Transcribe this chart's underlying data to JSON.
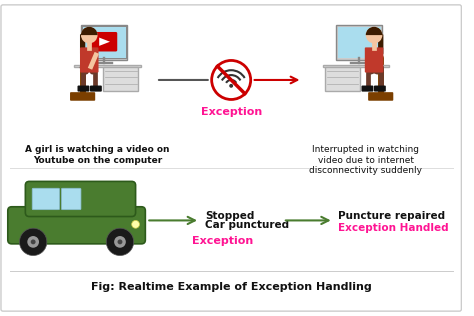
{
  "bg_color": "#ffffff",
  "border_color": "#cccccc",
  "title": "Fig: Realtime Example of Exception Handling",
  "title_color": "#111111",
  "exception_color": "#ff1493",
  "arrow_green": "#4a7c2f",
  "arrow_red": "#cc0000",
  "text_color": "#111111",
  "top_left_caption": "A girl is watching a video on\nYoutube on the computer",
  "top_right_caption": "Interrupted in watching\nvideo due to internet\ndisconnectivity suddenly",
  "exception_label_top": "Exception",
  "bottom_left_label1": "Stopped",
  "bottom_left_label2": "Car punctured",
  "bottom_exception": "Exception",
  "bottom_right_label1": "Puncture repaired",
  "bottom_right_label2": "Exception Handled",
  "skin_color": "#f5c5a0",
  "hair_color": "#3d1c00",
  "body_red": "#c0392b",
  "legs_dark": "#8B4513",
  "desk_color": "#dddddd",
  "desk_edge": "#aaaaaa",
  "monitor_color": "#aaddee",
  "car_green": "#4a7c2f",
  "car_dark": "#2d5a1b",
  "wheel_color": "#1a1a1a",
  "wheel_hub": "#999999",
  "window_color": "#aaddee"
}
